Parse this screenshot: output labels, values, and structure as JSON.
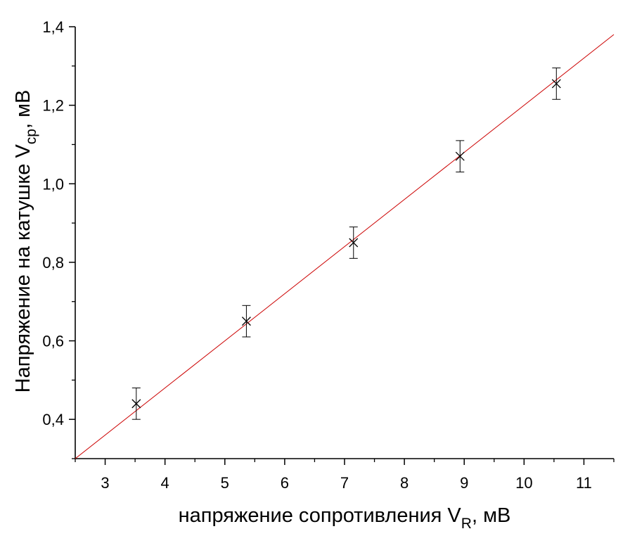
{
  "chart_data": {
    "type": "scatter",
    "xlabel": {
      "main": "напряжение сопротивления V",
      "sub": "R",
      "tail": ", мВ"
    },
    "ylabel": {
      "main": "Напряжение на катушке V",
      "sub": "ср",
      "tail": ", мВ"
    },
    "xlim": [
      2.5,
      11.5
    ],
    "ylim": [
      0.3,
      1.4
    ],
    "x_ticks": [
      3,
      4,
      5,
      6,
      7,
      8,
      9,
      10,
      11
    ],
    "x_tick_labels": [
      "3",
      "4",
      "5",
      "6",
      "7",
      "8",
      "9",
      "10",
      "11"
    ],
    "y_ticks": [
      0.4,
      0.6,
      0.8,
      1.0,
      1.2,
      1.4
    ],
    "y_tick_labels": [
      "0,4",
      "0,6",
      "0,8",
      "1,0",
      "1,2",
      "1,4"
    ],
    "series": [
      {
        "marker": "x",
        "color": "#000000",
        "x": [
          3.52,
          5.36,
          7.15,
          8.93,
          10.54
        ],
        "y": [
          0.44,
          0.65,
          0.85,
          1.07,
          1.255
        ],
        "y_error": [
          0.04,
          0.04,
          0.04,
          0.04,
          0.04
        ]
      }
    ],
    "fit_line": {
      "color": "#cc0000",
      "x": [
        2.5,
        11.5
      ],
      "y": [
        0.3,
        1.38
      ]
    },
    "grid": false,
    "legend": "none"
  }
}
